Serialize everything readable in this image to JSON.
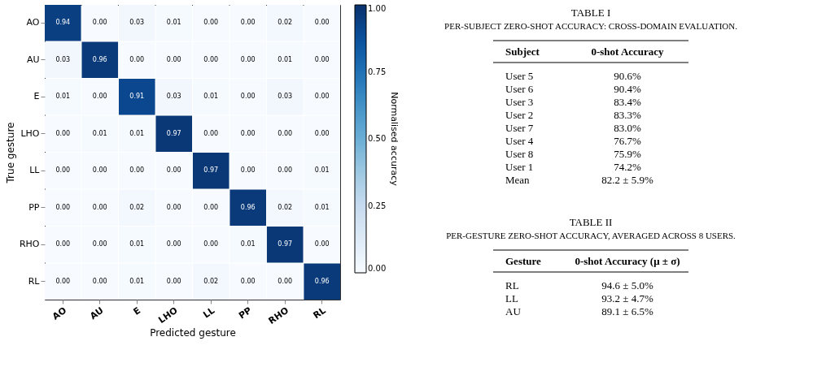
{
  "chart_data": [
    {
      "type": "heatmap",
      "xlabel": "Predicted gesture",
      "ylabel": "True gesture",
      "clabel": "Normalised accuracy",
      "categories": [
        "AO",
        "AU",
        "E",
        "LHO",
        "LL",
        "PP",
        "RHO",
        "RL"
      ],
      "y_categories": [
        "AO",
        "AU",
        "E",
        "LHO",
        "LL",
        "PP",
        "RHO",
        "RL"
      ],
      "cells": [
        [
          0.94,
          0.0,
          0.03,
          0.01,
          0.0,
          0.0,
          0.02,
          0.0
        ],
        [
          0.03,
          0.96,
          0.0,
          0.0,
          0.0,
          0.0,
          0.01,
          0.0
        ],
        [
          0.01,
          0.0,
          0.91,
          0.03,
          0.01,
          0.0,
          0.03,
          0.0
        ],
        [
          0.0,
          0.01,
          0.01,
          0.97,
          0.0,
          0.0,
          0.0,
          0.0
        ],
        [
          0.0,
          0.0,
          0.0,
          0.0,
          0.97,
          0.0,
          0.0,
          0.01
        ],
        [
          0.0,
          0.0,
          0.02,
          0.0,
          0.0,
          0.96,
          0.02,
          0.01
        ],
        [
          0.0,
          0.0,
          0.01,
          0.0,
          0.0,
          0.01,
          0.97,
          0.0
        ],
        [
          0.0,
          0.0,
          0.01,
          0.0,
          0.02,
          0.0,
          0.0,
          0.96
        ]
      ],
      "cell_labels": [
        [
          "0.94",
          "0.00",
          "0.03",
          "0.01",
          "0.00",
          "0.00",
          "0.02",
          "0.00"
        ],
        [
          "0.03",
          "0.96",
          "0.00",
          "0.00",
          "0.00",
          "0.00",
          "0.01",
          "0.00"
        ],
        [
          "0.01",
          "0.00",
          "0.91",
          "0.03",
          "0.01",
          "0.00",
          "0.03",
          "0.00"
        ],
        [
          "0.00",
          "0.01",
          "0.01",
          "0.97",
          "0.00",
          "0.00",
          "0.00",
          "0.00"
        ],
        [
          "0.00",
          "0.00",
          "0.00",
          "0.00",
          "0.97",
          "0.00",
          "0.00",
          "0.01"
        ],
        [
          "0.00",
          "0.00",
          "0.02",
          "0.00",
          "0.00",
          "0.96",
          "0.02",
          "0.01"
        ],
        [
          "0.00",
          "0.00",
          "0.01",
          "0.00",
          "0.00",
          "0.01",
          "0.97",
          "0.00"
        ],
        [
          "0.00",
          "0.00",
          "0.01",
          "0.00",
          "0.02",
          "0.00",
          "0.00",
          "0.96"
        ]
      ],
      "clim": [
        0,
        1
      ],
      "cticks": [
        {
          "value": 0,
          "label": "0.00"
        },
        {
          "value": 0.25,
          "label": "0.25"
        },
        {
          "value": 0.5,
          "label": "0.50"
        },
        {
          "value": 0.75,
          "label": "0.75"
        },
        {
          "value": 1,
          "label": "1.00"
        }
      ],
      "data_labels": true
    },
    {
      "type": "other",
      "title": "TABLE I",
      "subtitle": "PER-SUBJECT ZERO-SHOT ACCURACY: CROSS-DOMAIN EVALUATION.",
      "annotations": [
        "Subject",
        "0-shot Accuracy",
        "User 5",
        "90.6%",
        "User 6",
        "90.4%",
        "User 3",
        "83.4%",
        "User 2",
        "83.3%",
        "User 7",
        "83.0%",
        "User 4",
        "76.7%",
        "User 8",
        "75.9%",
        "User 1",
        "74.2%",
        "Mean",
        "82.2 ± 5.9%"
      ]
    },
    {
      "type": "other",
      "title": "TABLE II",
      "subtitle": "PER-GESTURE ZERO-SHOT ACCURACY, AVERAGED ACROSS 8 USERS.",
      "annotations": [
        "Gesture",
        "0-shot Accuracy (μ ± σ)",
        "RL",
        "94.6 ± 5.0%",
        "LL",
        "93.2 ± 4.7%",
        "AU",
        "89.1 ± 6.5%"
      ]
    }
  ]
}
